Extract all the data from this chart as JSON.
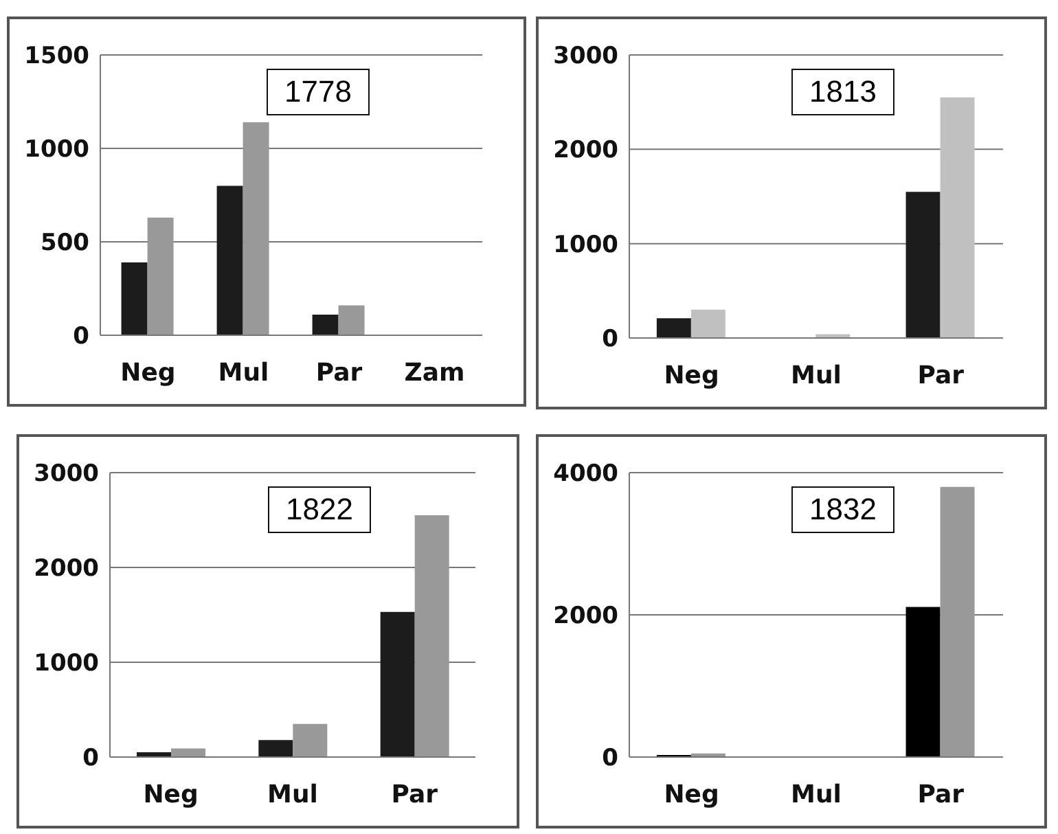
{
  "chart_data": [
    {
      "type": "bar",
      "categories": [
        "Neg",
        "Mul",
        "Par",
        "Zam"
      ],
      "series": [
        {
          "color": "#1c1c1c",
          "values": [
            390,
            800,
            110,
            0
          ]
        },
        {
          "color": "#999999",
          "values": [
            630,
            1140,
            160,
            0
          ]
        }
      ],
      "ylim": [
        0,
        1500
      ],
      "yticks": [
        0,
        500,
        1000,
        1500
      ],
      "grid": "y",
      "legend": false,
      "annotations": [
        "1778"
      ]
    },
    {
      "type": "bar",
      "categories": [
        "Neg",
        "Mul",
        "Par"
      ],
      "series": [
        {
          "color": "#1c1c1c",
          "values": [
            210,
            0,
            1550
          ]
        },
        {
          "color": "#c0c0c0",
          "values": [
            300,
            40,
            2550
          ]
        }
      ],
      "ylim": [
        0,
        3000
      ],
      "yticks": [
        0,
        1000,
        2000,
        3000
      ],
      "grid": "y",
      "legend": false,
      "annotations": [
        "1813"
      ]
    },
    {
      "type": "bar",
      "categories": [
        "Neg",
        "Mul",
        "Par"
      ],
      "series": [
        {
          "color": "#1c1c1c",
          "values": [
            50,
            180,
            1530
          ]
        },
        {
          "color": "#999999",
          "values": [
            90,
            350,
            2550
          ]
        }
      ],
      "ylim": [
        0,
        3000
      ],
      "yticks": [
        0,
        1000,
        2000,
        3000
      ],
      "grid": "y",
      "legend": false,
      "annotations": [
        "1822"
      ]
    },
    {
      "type": "bar",
      "categories": [
        "Neg",
        "Mul",
        "Par"
      ],
      "series": [
        {
          "color": "#000000",
          "values": [
            30,
            0,
            2110
          ]
        },
        {
          "color": "#999999",
          "values": [
            50,
            0,
            3800
          ]
        }
      ],
      "ylim": [
        0,
        4000
      ],
      "yticks": [
        0,
        2000,
        4000
      ],
      "grid": "y",
      "legend": false,
      "annotations": [
        "1832"
      ]
    }
  ]
}
